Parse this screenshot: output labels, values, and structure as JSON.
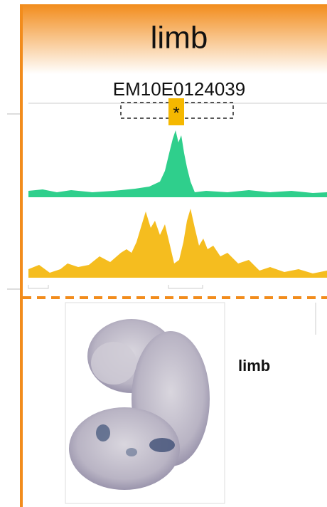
{
  "header": {
    "title": "limb"
  },
  "region": {
    "id": "EM10E0124039",
    "marker": "*"
  },
  "expression": {
    "label": "limb"
  }
}
